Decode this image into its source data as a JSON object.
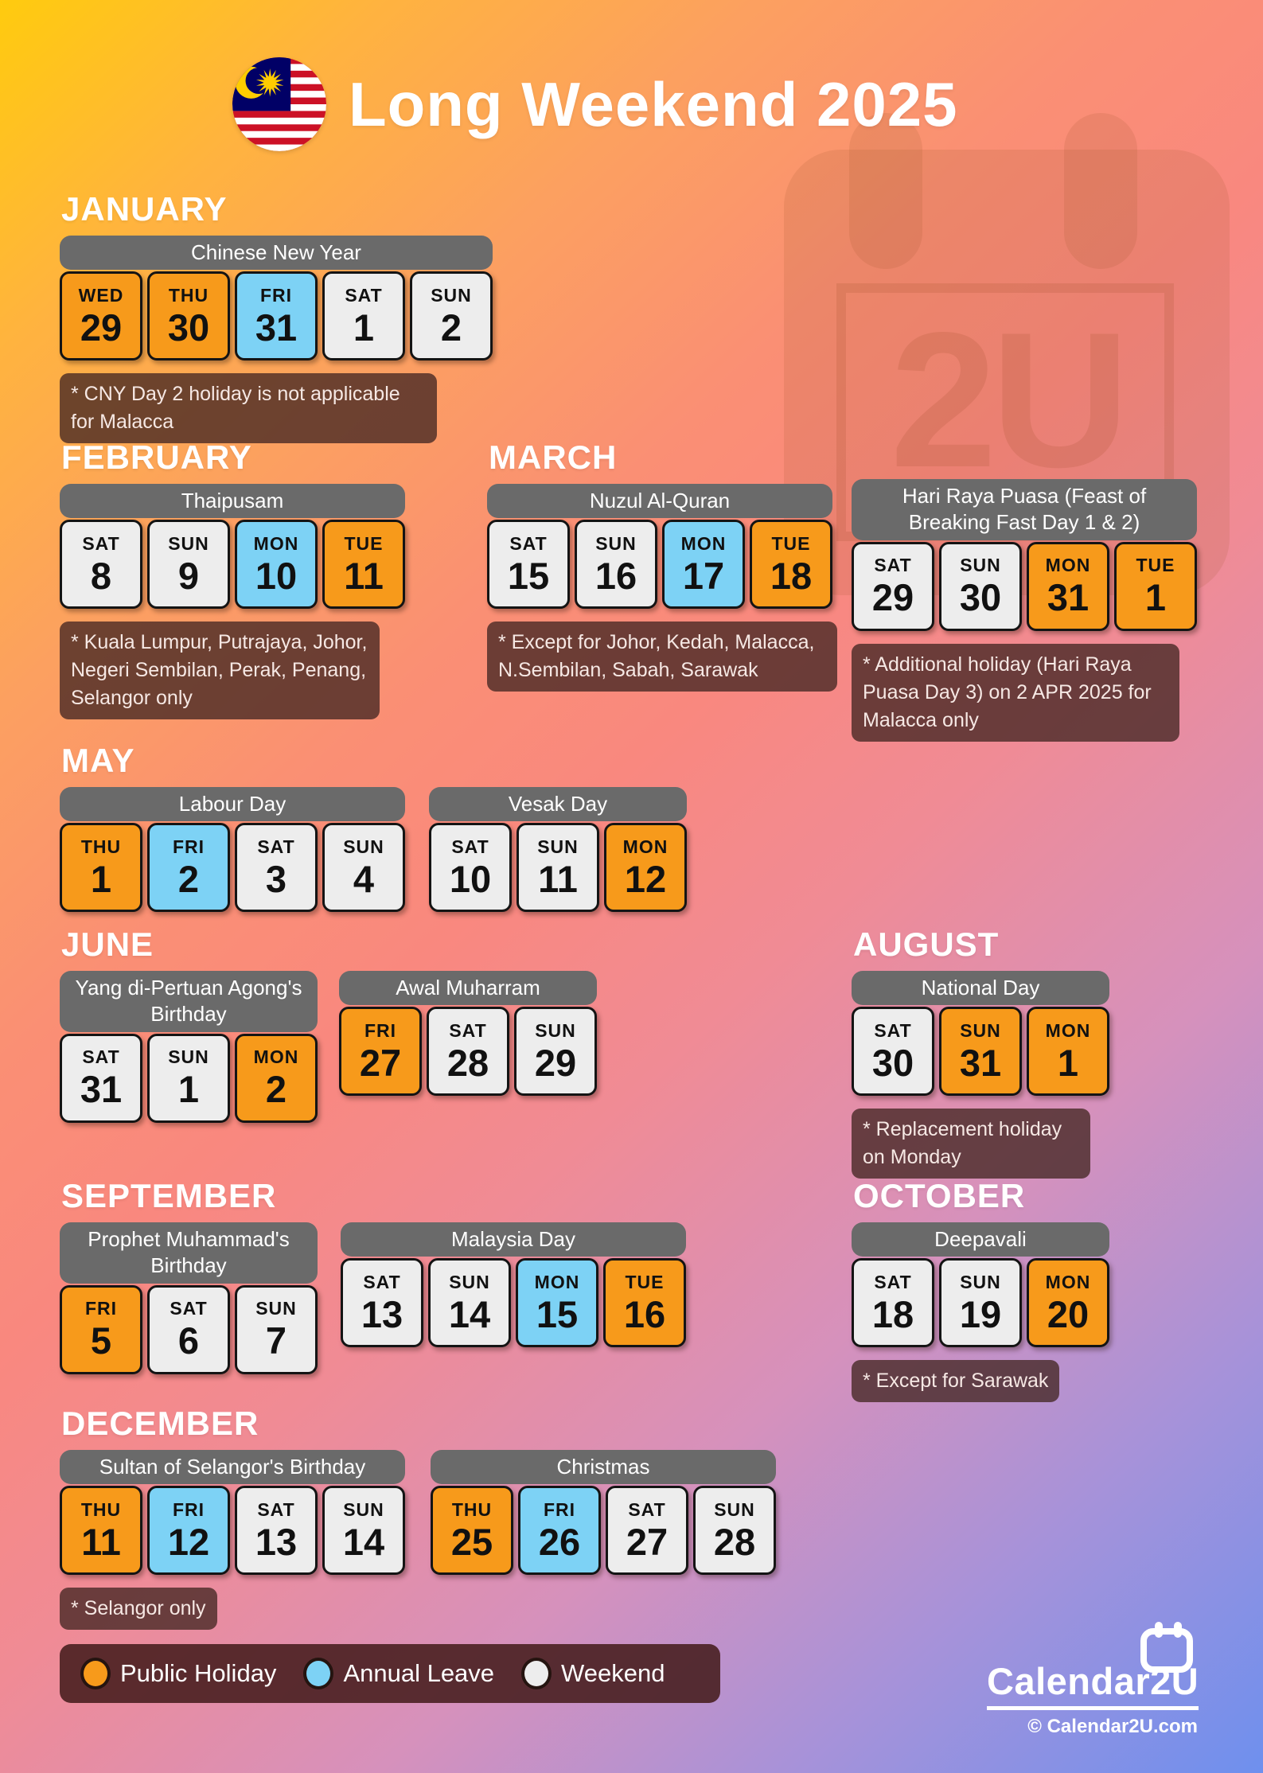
{
  "header": {
    "title": "Long Weekend 2025"
  },
  "watermark": {
    "text": "2U"
  },
  "colors": {
    "public_holiday": "#F79A1B",
    "annual_leave": "#7DD2F5",
    "weekend": "#EDEDED",
    "event_header_gray": "#6A6A6A",
    "note_background": "rgba(68,38,34,0.78)",
    "legend_background": "rgba(70,29,28,0.88)",
    "watermark_shape": "rgba(146,74,28,0.13)",
    "watermark_detail": "rgba(140,64,24,0.14)",
    "flag_red": "#CC1126",
    "flag_blue": "#010066",
    "flag_yellow": "#FFCC00"
  },
  "months": [
    {
      "name": "JANUARY",
      "note": "* CNY Day 2 holiday is not applicable for Malacca",
      "events": [
        {
          "title": "Chinese New Year",
          "days": [
            {
              "dow": "WED",
              "num": "29",
              "type": "ph"
            },
            {
              "dow": "THU",
              "num": "30",
              "type": "ph"
            },
            {
              "dow": "FRI",
              "num": "31",
              "type": "al"
            },
            {
              "dow": "SAT",
              "num": "1",
              "type": "we"
            },
            {
              "dow": "SUN",
              "num": "2",
              "type": "we"
            }
          ]
        }
      ]
    },
    {
      "name": "FEBRUARY",
      "note": "* Kuala Lumpur, Putrajaya, Johor, Negeri Sembilan, Perak, Penang, Selangor only",
      "events": [
        {
          "title": "Thaipusam",
          "days": [
            {
              "dow": "SAT",
              "num": "8",
              "type": "we"
            },
            {
              "dow": "SUN",
              "num": "9",
              "type": "we"
            },
            {
              "dow": "MON",
              "num": "10",
              "type": "al"
            },
            {
              "dow": "TUE",
              "num": "11",
              "type": "ph"
            }
          ]
        }
      ]
    },
    {
      "name": "MARCH",
      "note": "* Except for Johor, Kedah, Malacca, N.Sembilan, Sabah, Sarawak",
      "events": [
        {
          "title": "Nuzul Al-Quran",
          "days": [
            {
              "dow": "SAT",
              "num": "15",
              "type": "we"
            },
            {
              "dow": "SUN",
              "num": "16",
              "type": "we"
            },
            {
              "dow": "MON",
              "num": "17",
              "type": "al"
            },
            {
              "dow": "TUE",
              "num": "18",
              "type": "ph"
            }
          ]
        }
      ]
    },
    {
      "name": "",
      "note": "* Additional holiday (Hari Raya Puasa Day 3) on 2 APR 2025 for Malacca only",
      "events": [
        {
          "title": "Hari Raya Puasa (Feast of Breaking Fast Day 1 & 2)",
          "days": [
            {
              "dow": "SAT",
              "num": "29",
              "type": "we"
            },
            {
              "dow": "SUN",
              "num": "30",
              "type": "we"
            },
            {
              "dow": "MON",
              "num": "31",
              "type": "ph"
            },
            {
              "dow": "TUE",
              "num": "1",
              "type": "ph"
            }
          ]
        }
      ]
    },
    {
      "name": "MAY",
      "note": "",
      "events": [
        {
          "title": "Labour Day",
          "days": [
            {
              "dow": "THU",
              "num": "1",
              "type": "ph"
            },
            {
              "dow": "FRI",
              "num": "2",
              "type": "al"
            },
            {
              "dow": "SAT",
              "num": "3",
              "type": "we"
            },
            {
              "dow": "SUN",
              "num": "4",
              "type": "we"
            }
          ]
        },
        {
          "title": "Vesak Day",
          "days": [
            {
              "dow": "SAT",
              "num": "10",
              "type": "we"
            },
            {
              "dow": "SUN",
              "num": "11",
              "type": "we"
            },
            {
              "dow": "MON",
              "num": "12",
              "type": "ph"
            }
          ]
        }
      ]
    },
    {
      "name": "JUNE",
      "note": "",
      "events": [
        {
          "title": "Yang di-Pertuan Agong's Birthday",
          "days": [
            {
              "dow": "SAT",
              "num": "31",
              "type": "we"
            },
            {
              "dow": "SUN",
              "num": "1",
              "type": "we"
            },
            {
              "dow": "MON",
              "num": "2",
              "type": "ph"
            }
          ]
        },
        {
          "title": "Awal Muharram",
          "days": [
            {
              "dow": "FRI",
              "num": "27",
              "type": "ph"
            },
            {
              "dow": "SAT",
              "num": "28",
              "type": "we"
            },
            {
              "dow": "SUN",
              "num": "29",
              "type": "we"
            }
          ]
        }
      ]
    },
    {
      "name": "AUGUST",
      "note": "* Replacement holiday on Monday",
      "events": [
        {
          "title": "National Day",
          "days": [
            {
              "dow": "SAT",
              "num": "30",
              "type": "we"
            },
            {
              "dow": "SUN",
              "num": "31",
              "type": "ph"
            },
            {
              "dow": "MON",
              "num": "1",
              "type": "ph"
            }
          ]
        }
      ]
    },
    {
      "name": "SEPTEMBER",
      "note": "",
      "events": [
        {
          "title": "Prophet Muhammad's Birthday",
          "days": [
            {
              "dow": "FRI",
              "num": "5",
              "type": "ph"
            },
            {
              "dow": "SAT",
              "num": "6",
              "type": "we"
            },
            {
              "dow": "SUN",
              "num": "7",
              "type": "we"
            }
          ]
        },
        {
          "title": "Malaysia Day",
          "days": [
            {
              "dow": "SAT",
              "num": "13",
              "type": "we"
            },
            {
              "dow": "SUN",
              "num": "14",
              "type": "we"
            },
            {
              "dow": "MON",
              "num": "15",
              "type": "al"
            },
            {
              "dow": "TUE",
              "num": "16",
              "type": "ph"
            }
          ]
        }
      ]
    },
    {
      "name": "OCTOBER",
      "note": "* Except for Sarawak",
      "events": [
        {
          "title": "Deepavali",
          "days": [
            {
              "dow": "SAT",
              "num": "18",
              "type": "we"
            },
            {
              "dow": "SUN",
              "num": "19",
              "type": "we"
            },
            {
              "dow": "MON",
              "num": "20",
              "type": "ph"
            }
          ]
        }
      ]
    },
    {
      "name": "DECEMBER",
      "note": "* Selangor only",
      "events": [
        {
          "title": "Sultan of Selangor's Birthday",
          "days": [
            {
              "dow": "THU",
              "num": "11",
              "type": "ph"
            },
            {
              "dow": "FRI",
              "num": "12",
              "type": "al"
            },
            {
              "dow": "SAT",
              "num": "13",
              "type": "we"
            },
            {
              "dow": "SUN",
              "num": "14",
              "type": "we"
            }
          ]
        },
        {
          "title": "Christmas",
          "days": [
            {
              "dow": "THU",
              "num": "25",
              "type": "ph"
            },
            {
              "dow": "FRI",
              "num": "26",
              "type": "al"
            },
            {
              "dow": "SAT",
              "num": "27",
              "type": "we"
            },
            {
              "dow": "SUN",
              "num": "28",
              "type": "we"
            }
          ]
        }
      ]
    }
  ],
  "legend": {
    "items": [
      {
        "label": "Public Holiday",
        "type": "ph"
      },
      {
        "label": "Annual Leave",
        "type": "al"
      },
      {
        "label": "Weekend",
        "type": "we"
      }
    ]
  },
  "brand": {
    "name": "Calendar2U",
    "site": "© Calendar2U.com"
  }
}
